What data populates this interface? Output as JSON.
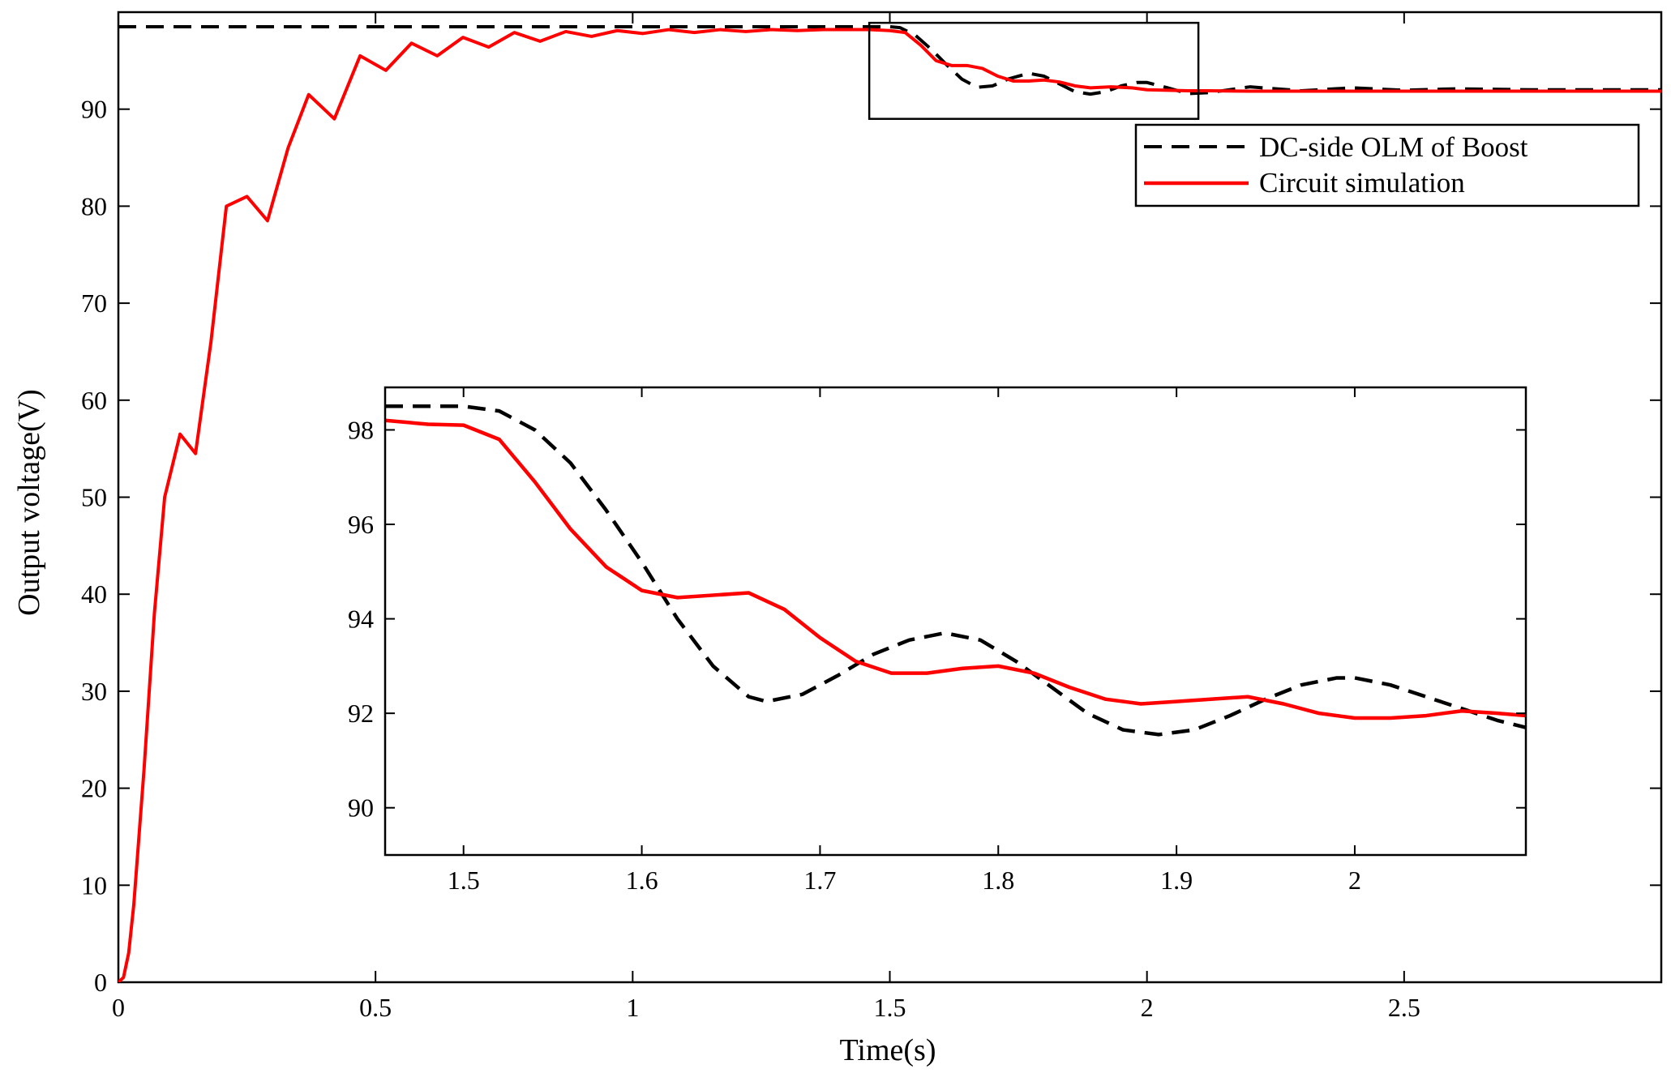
{
  "chart_data": [
    {
      "type": "line",
      "role": "main",
      "title": "",
      "xlabel": "Time(s)",
      "ylabel": "Output voltage(V)",
      "xlim": [
        0,
        3
      ],
      "ylim": [
        0,
        100
      ],
      "xticks": [
        0,
        0.5,
        1,
        1.5,
        2,
        2.5
      ],
      "xtick_labels": [
        "0",
        "0.5",
        "1",
        "1.5",
        "2",
        "2.5"
      ],
      "yticks": [
        0,
        10,
        20,
        30,
        40,
        50,
        60,
        70,
        80,
        90
      ],
      "ytick_labels": [
        "0",
        "10",
        "20",
        "30",
        "40",
        "50",
        "60",
        "70",
        "80",
        "90"
      ],
      "grid": false,
      "legend_position": "top-right",
      "zoom_box": {
        "x": [
          1.46,
          2.1
        ],
        "y": [
          89,
          98.9
        ]
      },
      "series": [
        {
          "name": "DC-side OLM of Boost",
          "style": "dashed",
          "color": "#000000",
          "x": [
            0,
            1.5,
            1.52,
            1.55,
            1.58,
            1.61,
            1.64,
            1.67,
            1.7,
            1.73,
            1.77,
            1.8,
            1.83,
            1.86,
            1.89,
            1.92,
            1.95,
            1.98,
            2.0,
            2.04,
            2.08,
            2.12,
            2.2,
            2.3,
            2.4,
            2.5,
            2.6,
            2.75,
            3.0
          ],
          "y": [
            98.5,
            98.5,
            98.4,
            97.6,
            96.2,
            94.6,
            93.1,
            92.25,
            92.4,
            93.1,
            93.7,
            93.4,
            92.6,
            91.8,
            91.55,
            91.8,
            92.4,
            92.75,
            92.75,
            92.2,
            91.6,
            91.7,
            92.3,
            91.9,
            92.2,
            91.95,
            92.1,
            92.0,
            92.0
          ]
        },
        {
          "name": "Circuit simulation",
          "style": "solid",
          "color": "#ff0000",
          "x": [
            0.0,
            0.01,
            0.02,
            0.03,
            0.05,
            0.07,
            0.09,
            0.12,
            0.15,
            0.18,
            0.21,
            0.25,
            0.29,
            0.33,
            0.37,
            0.42,
            0.47,
            0.52,
            0.57,
            0.62,
            0.67,
            0.72,
            0.77,
            0.82,
            0.87,
            0.92,
            0.97,
            1.02,
            1.07,
            1.12,
            1.17,
            1.22,
            1.27,
            1.32,
            1.37,
            1.42,
            1.46,
            1.5,
            1.53,
            1.56,
            1.59,
            1.62,
            1.65,
            1.68,
            1.71,
            1.74,
            1.77,
            1.8,
            1.83,
            1.86,
            1.89,
            1.93,
            1.97,
            2.0,
            2.04,
            2.08,
            2.12,
            2.2,
            2.3,
            2.4,
            2.5,
            2.6,
            2.75,
            3.0
          ],
          "y": [
            0,
            0.5,
            3,
            8,
            22,
            38,
            50,
            56.5,
            54.5,
            66,
            80,
            81,
            78.5,
            86,
            91.5,
            89,
            95.5,
            94,
            96.8,
            95.5,
            97.4,
            96.4,
            97.9,
            97.0,
            98.0,
            97.5,
            98.1,
            97.8,
            98.2,
            97.9,
            98.2,
            98.0,
            98.2,
            98.1,
            98.2,
            98.2,
            98.2,
            98.1,
            97.9,
            96.6,
            95.0,
            94.5,
            94.5,
            94.2,
            93.4,
            92.9,
            92.9,
            93.0,
            92.8,
            92.4,
            92.2,
            92.3,
            92.2,
            92.0,
            91.95,
            91.9,
            91.9,
            91.85,
            91.85,
            91.85,
            91.85,
            91.85,
            91.85,
            91.85
          ]
        }
      ]
    },
    {
      "type": "line",
      "role": "inset",
      "title": "",
      "xlabel": "",
      "ylabel": "",
      "xlim": [
        1.456,
        2.096
      ],
      "ylim": [
        89,
        98.9
      ],
      "xticks": [
        1.5,
        1.6,
        1.7,
        1.8,
        1.9,
        2.0
      ],
      "xtick_labels": [
        "1.5",
        "1.6",
        "1.7",
        "1.8",
        "1.9",
        "2"
      ],
      "yticks": [
        90,
        92,
        94,
        96,
        98
      ],
      "ytick_labels": [
        "90",
        "92",
        "94",
        "96",
        "98"
      ],
      "grid": false,
      "series": [
        {
          "name": "DC-side OLM of Boost",
          "style": "dashed",
          "color": "#000000",
          "x": [
            1.456,
            1.5,
            1.52,
            1.54,
            1.56,
            1.58,
            1.6,
            1.62,
            1.64,
            1.66,
            1.67,
            1.69,
            1.71,
            1.73,
            1.75,
            1.77,
            1.79,
            1.81,
            1.83,
            1.85,
            1.87,
            1.89,
            1.91,
            1.93,
            1.95,
            1.97,
            1.99,
            2.0,
            2.02,
            2.04,
            2.06,
            2.08,
            2.096
          ],
          "y": [
            98.5,
            98.5,
            98.4,
            98.0,
            97.3,
            96.3,
            95.2,
            94.0,
            93.0,
            92.35,
            92.25,
            92.4,
            92.8,
            93.25,
            93.55,
            93.7,
            93.55,
            93.1,
            92.55,
            92.0,
            91.65,
            91.55,
            91.65,
            91.95,
            92.3,
            92.6,
            92.75,
            92.75,
            92.6,
            92.35,
            92.1,
            91.85,
            91.7
          ]
        },
        {
          "name": "Circuit simulation",
          "style": "solid",
          "color": "#ff0000",
          "x": [
            1.456,
            1.48,
            1.5,
            1.52,
            1.54,
            1.56,
            1.58,
            1.6,
            1.62,
            1.64,
            1.66,
            1.68,
            1.7,
            1.72,
            1.74,
            1.76,
            1.78,
            1.8,
            1.82,
            1.84,
            1.86,
            1.88,
            1.9,
            1.92,
            1.94,
            1.96,
            1.98,
            2.0,
            2.02,
            2.04,
            2.06,
            2.08,
            2.096
          ],
          "y": [
            98.2,
            98.12,
            98.1,
            97.8,
            96.9,
            95.9,
            95.1,
            94.6,
            94.45,
            94.5,
            94.55,
            94.2,
            93.6,
            93.1,
            92.85,
            92.85,
            92.95,
            93.0,
            92.85,
            92.55,
            92.3,
            92.2,
            92.25,
            92.3,
            92.35,
            92.2,
            92.0,
            91.9,
            91.9,
            91.95,
            92.05,
            92.0,
            91.95
          ]
        }
      ]
    }
  ]
}
